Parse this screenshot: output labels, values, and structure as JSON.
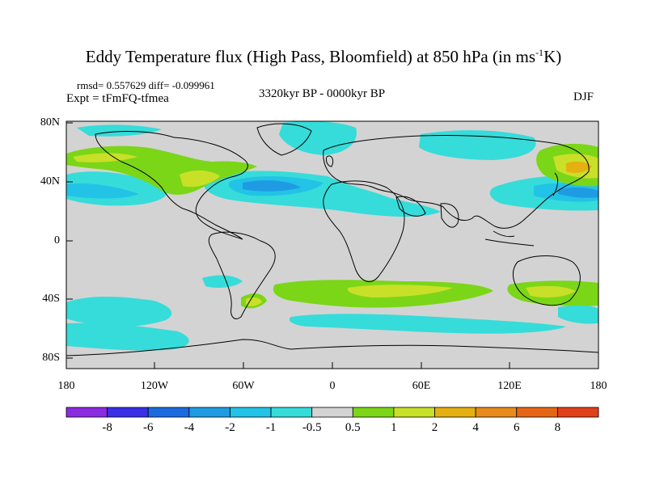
{
  "title_main": "Eddy Temperature flux (High Pass, Bloomfield) at 850 hPa (in ms",
  "title_sup": "-1",
  "title_end": "K)",
  "stats": "rmsd= 0.557629 diff= -0.099961",
  "expt": "Expt = tFmFQ-tfmea",
  "period": "3320kyr BP - 0000kyr BP",
  "season": "DJF",
  "lat_labels": [
    "80N",
    "40N",
    "0",
    "40S",
    "80S"
  ],
  "lon_labels": [
    "180",
    "120W",
    "60W",
    "0",
    "60E",
    "120E",
    "180"
  ],
  "colorbar": {
    "labels": [
      "-8",
      "-6",
      "-4",
      "-2",
      "-1",
      "-0.5",
      "0.5",
      "1",
      "2",
      "4",
      "6",
      "8"
    ],
    "colors": [
      "#8a2be2",
      "#3a2ee6",
      "#1a6be0",
      "#1f9be3",
      "#22c3e6",
      "#36dcd9",
      "#d3d3d3",
      "#7bd617",
      "#c9e028",
      "#e4b012",
      "#e88a1c",
      "#e66514",
      "#e0401a"
    ]
  },
  "map_colors": {
    "background": "#d3d3d3",
    "coast": "#000000",
    "land_fill": "#d3d3d3"
  }
}
